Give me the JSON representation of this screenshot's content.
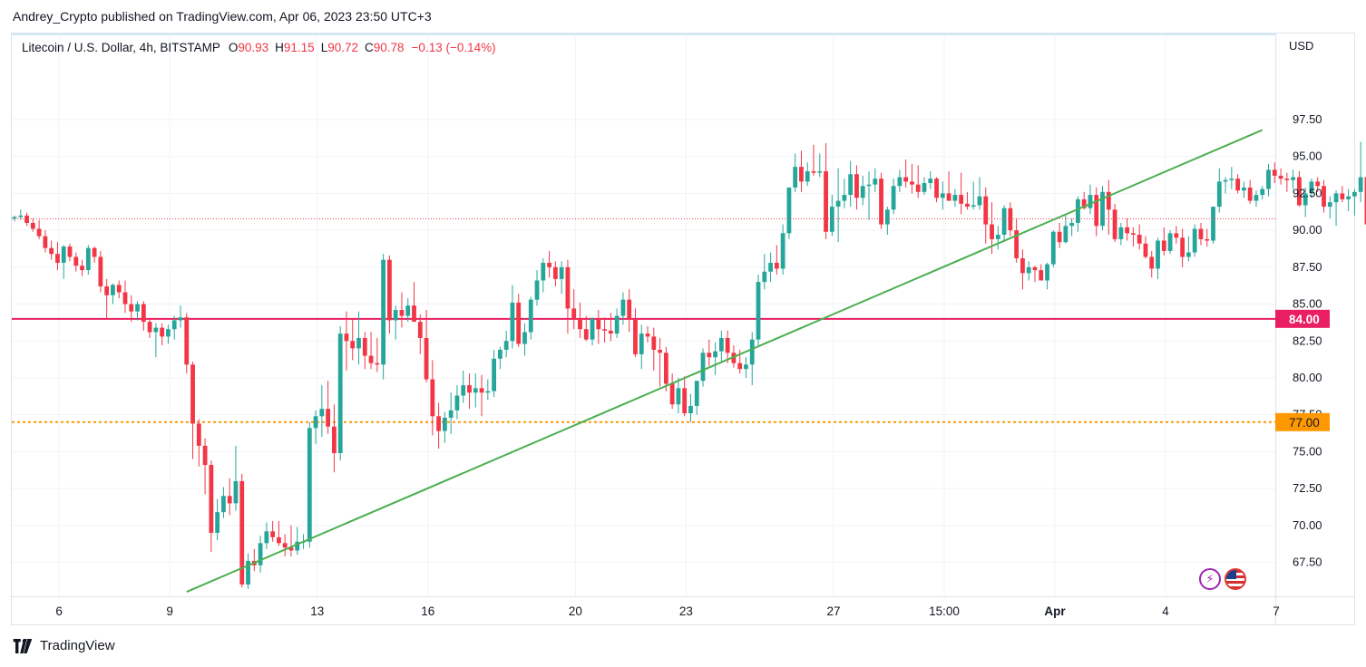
{
  "publisher": "Andrey_Crypto published on TradingView.com, Apr 06, 2023 23:50 UTC+3",
  "legend": {
    "symbol": "Litecoin / U.S. Dollar, 4h, BITSTAMP",
    "o_label": "O",
    "o_value": "90.93",
    "h_label": "H",
    "h_value": "91.15",
    "l_label": "L",
    "l_value": "90.72",
    "c_label": "C",
    "c_value": "90.78",
    "change": "−0.13 (−0.14%)"
  },
  "currency": "USD",
  "brand": "TradingView",
  "colors": {
    "up": "#26a69a",
    "down": "#f23645",
    "trendline": "#4caf50",
    "resistance": "#e91e63",
    "support": "#ff9800",
    "last_price": "#f23645"
  },
  "icons": [
    "bolt-event-icon",
    "us-flag-icon"
  ],
  "chart_data": {
    "type": "candlestick",
    "pair": "LTC/USD",
    "interval": "4h",
    "exchange": "BITSTAMP",
    "ylim": [
      65.5,
      99
    ],
    "y_ticks": [
      67.5,
      70.0,
      72.5,
      75.0,
      77.5,
      80.0,
      82.5,
      85.0,
      87.5,
      90.0,
      92.5,
      95.0,
      97.5
    ],
    "x_tick_labels": [
      "6",
      "9",
      "13",
      "16",
      "20",
      "23",
      "27",
      "15:00",
      "Apr",
      "4",
      "7"
    ],
    "x_tick_index": [
      4,
      22,
      46,
      64,
      88,
      106,
      130,
      148,
      166,
      184,
      202
    ],
    "horizontal_levels": [
      {
        "value": 84.0,
        "label": "84.00",
        "style": "solid"
      },
      {
        "value": 77.0,
        "label": "77.00",
        "style": "dotted"
      }
    ],
    "last_price": 90.78,
    "trendline": {
      "from": {
        "i": 28,
        "y": 65.5
      },
      "to": {
        "i": 203,
        "y": 96.8
      }
    },
    "candles": [
      [
        90.8,
        91.0,
        90.6,
        90.9
      ],
      [
        90.9,
        91.4,
        90.7,
        91.0
      ],
      [
        91.0,
        91.2,
        90.3,
        90.5
      ],
      [
        90.5,
        90.8,
        89.9,
        90.1
      ],
      [
        90.1,
        90.7,
        89.4,
        89.6
      ],
      [
        89.6,
        90.0,
        88.5,
        88.8
      ],
      [
        88.8,
        89.3,
        88.0,
        88.4
      ],
      [
        88.4,
        89.2,
        87.3,
        87.8
      ],
      [
        87.8,
        89.0,
        86.7,
        88.9
      ],
      [
        88.9,
        89.1,
        87.9,
        88.2
      ],
      [
        88.2,
        88.5,
        87.2,
        87.6
      ],
      [
        87.6,
        88.0,
        86.9,
        87.3
      ],
      [
        87.3,
        89.0,
        87.0,
        88.8
      ],
      [
        88.8,
        88.9,
        87.8,
        88.2
      ],
      [
        88.2,
        88.6,
        85.8,
        86.2
      ],
      [
        86.2,
        86.7,
        84.0,
        85.6
      ],
      [
        85.6,
        86.4,
        85.0,
        86.3
      ],
      [
        86.3,
        86.6,
        85.4,
        85.8
      ],
      [
        85.8,
        86.6,
        84.4,
        85.0
      ],
      [
        85.0,
        85.6,
        83.8,
        84.5
      ],
      [
        84.5,
        85.2,
        83.9,
        85.0
      ],
      [
        85.0,
        85.2,
        83.2,
        83.8
      ],
      [
        83.8,
        84.0,
        82.7,
        83.1
      ],
      [
        83.1,
        83.7,
        81.4,
        83.4
      ],
      [
        83.4,
        83.7,
        82.2,
        82.8
      ],
      [
        82.8,
        83.6,
        82.3,
        83.3
      ],
      [
        83.3,
        84.2,
        82.6,
        83.9
      ],
      [
        83.9,
        84.9,
        83.4,
        84.1
      ],
      [
        84.1,
        84.4,
        80.3,
        80.9
      ],
      [
        80.9,
        81.1,
        74.5,
        76.9
      ],
      [
        76.9,
        77.2,
        74.0,
        75.4
      ],
      [
        75.4,
        75.9,
        72.1,
        74.1
      ],
      [
        74.1,
        74.4,
        68.2,
        69.5
      ],
      [
        69.5,
        71.8,
        69.0,
        70.9
      ],
      [
        70.9,
        72.6,
        70.5,
        72.0
      ],
      [
        72.0,
        73.2,
        70.7,
        71.5
      ],
      [
        71.5,
        75.4,
        71.0,
        73.0
      ],
      [
        73.0,
        73.5,
        65.8,
        66.0
      ],
      [
        66.0,
        68.1,
        65.7,
        67.6
      ],
      [
        67.6,
        68.4,
        66.9,
        67.3
      ],
      [
        67.3,
        69.3,
        66.8,
        68.8
      ],
      [
        68.8,
        70.2,
        68.4,
        69.6
      ],
      [
        69.6,
        70.3,
        68.9,
        69.2
      ],
      [
        69.2,
        70.3,
        68.6,
        68.8
      ],
      [
        68.8,
        69.4,
        67.9,
        68.5
      ],
      [
        68.5,
        70.0,
        67.9,
        68.3
      ],
      [
        68.3,
        69.9,
        68.0,
        68.9
      ],
      [
        68.9,
        69.4,
        68.4,
        68.9
      ],
      [
        68.9,
        77.0,
        68.5,
        76.6
      ],
      [
        76.6,
        77.8,
        75.5,
        77.4
      ],
      [
        77.4,
        79.5,
        76.0,
        77.9
      ],
      [
        77.9,
        79.8,
        76.2,
        76.7
      ],
      [
        76.7,
        78.2,
        73.6,
        74.9
      ],
      [
        74.9,
        83.5,
        74.4,
        83.0
      ],
      [
        83.0,
        84.5,
        80.5,
        82.5
      ],
      [
        82.5,
        84.0,
        81.2,
        82.0
      ],
      [
        82.0,
        84.5,
        80.9,
        82.7
      ],
      [
        82.7,
        83.1,
        80.6,
        81.5
      ],
      [
        81.5,
        83.1,
        80.6,
        81.0
      ],
      [
        81.0,
        82.7,
        80.4,
        80.9
      ],
      [
        80.9,
        88.4,
        79.9,
        88.0
      ],
      [
        88.0,
        88.3,
        83.0,
        83.9
      ],
      [
        83.9,
        84.9,
        82.6,
        84.6
      ],
      [
        84.6,
        85.8,
        83.4,
        84.2
      ],
      [
        84.2,
        85.4,
        83.8,
        84.9
      ],
      [
        84.9,
        86.5,
        84.0,
        83.8
      ],
      [
        83.8,
        84.3,
        81.6,
        82.7
      ],
      [
        82.7,
        84.6,
        79.7,
        79.9
      ],
      [
        79.9,
        81.2,
        76.1,
        77.4
      ],
      [
        77.4,
        78.3,
        75.2,
        76.4
      ],
      [
        76.4,
        77.7,
        75.6,
        77.3
      ],
      [
        77.3,
        79.0,
        76.2,
        77.8
      ],
      [
        77.8,
        79.5,
        77.2,
        78.8
      ],
      [
        78.8,
        80.5,
        78.3,
        79.5
      ],
      [
        79.5,
        80.3,
        77.9,
        79.0
      ],
      [
        79.0,
        80.3,
        78.0,
        79.3
      ],
      [
        79.3,
        80.2,
        77.4,
        79.0
      ],
      [
        79.0,
        79.9,
        78.5,
        79.1
      ],
      [
        79.1,
        81.9,
        78.7,
        81.3
      ],
      [
        81.3,
        82.1,
        80.6,
        81.9
      ],
      [
        81.9,
        83.2,
        81.4,
        82.5
      ],
      [
        82.5,
        86.3,
        82.0,
        85.1
      ],
      [
        85.1,
        85.7,
        82.1,
        82.3
      ],
      [
        82.3,
        83.7,
        81.5,
        83.1
      ],
      [
        83.1,
        85.5,
        82.6,
        85.3
      ],
      [
        85.3,
        87.3,
        84.9,
        86.6
      ],
      [
        86.6,
        88.1,
        85.8,
        87.8
      ],
      [
        87.8,
        88.6,
        86.8,
        87.5
      ],
      [
        87.5,
        87.9,
        86.2,
        86.7
      ],
      [
        86.7,
        87.9,
        85.7,
        87.5
      ],
      [
        87.5,
        88.0,
        83.0,
        84.7
      ],
      [
        84.7,
        86.0,
        83.3,
        84.0
      ],
      [
        84.0,
        85.1,
        82.7,
        83.3
      ],
      [
        83.3,
        84.2,
        82.5,
        82.6
      ],
      [
        82.6,
        84.1,
        82.2,
        84.0
      ],
      [
        84.0,
        84.6,
        82.3,
        83.3
      ],
      [
        83.3,
        84.1,
        82.4,
        83.2
      ],
      [
        83.2,
        84.4,
        82.5,
        83.0
      ],
      [
        83.0,
        84.7,
        82.7,
        84.2
      ],
      [
        84.2,
        85.8,
        83.6,
        85.3
      ],
      [
        85.3,
        86.0,
        83.1,
        84.0
      ],
      [
        84.0,
        84.7,
        81.4,
        81.6
      ],
      [
        81.6,
        83.6,
        80.6,
        83.0
      ],
      [
        83.0,
        83.5,
        82.4,
        82.8
      ],
      [
        82.8,
        83.4,
        80.5,
        81.9
      ],
      [
        81.9,
        82.7,
        79.4,
        81.7
      ],
      [
        81.7,
        82.1,
        79.1,
        79.6
      ],
      [
        79.6,
        80.3,
        77.9,
        78.2
      ],
      [
        78.2,
        80.0,
        77.6,
        79.3
      ],
      [
        79.3,
        80.1,
        77.4,
        77.6
      ],
      [
        77.6,
        78.9,
        77.0,
        78.1
      ],
      [
        78.1,
        79.7,
        77.5,
        79.8
      ],
      [
        79.8,
        82.0,
        79.4,
        81.7
      ],
      [
        81.7,
        82.6,
        80.8,
        81.4
      ],
      [
        81.4,
        82.4,
        80.2,
        81.8
      ],
      [
        81.8,
        83.2,
        81.0,
        82.7
      ],
      [
        82.7,
        83.2,
        81.0,
        81.7
      ],
      [
        81.7,
        82.2,
        80.7,
        81.0
      ],
      [
        81.0,
        81.9,
        80.3,
        80.6
      ],
      [
        80.6,
        81.4,
        80.0,
        80.9
      ],
      [
        80.9,
        83.1,
        79.5,
        82.6
      ],
      [
        82.6,
        87.0,
        82.1,
        86.5
      ],
      [
        86.5,
        88.4,
        86.0,
        87.2
      ],
      [
        87.2,
        88.5,
        86.5,
        87.8
      ],
      [
        87.8,
        89.0,
        87.0,
        87.4
      ],
      [
        87.4,
        90.4,
        87.0,
        89.8
      ],
      [
        89.8,
        92.9,
        89.4,
        92.9
      ],
      [
        92.9,
        95.2,
        92.6,
        94.3
      ],
      [
        94.3,
        95.4,
        92.6,
        93.3
      ],
      [
        93.3,
        94.6,
        93.0,
        94.0
      ],
      [
        94.0,
        95.8,
        93.7,
        93.9
      ],
      [
        93.9,
        95.2,
        93.6,
        94.0
      ],
      [
        94.0,
        95.9,
        89.4,
        89.9
      ],
      [
        89.9,
        92.4,
        89.6,
        91.6
      ],
      [
        91.6,
        94.2,
        89.2,
        92.0
      ],
      [
        92.0,
        93.5,
        91.5,
        92.4
      ],
      [
        92.4,
        94.7,
        91.6,
        93.8
      ],
      [
        93.8,
        94.4,
        91.4,
        92.2
      ],
      [
        92.2,
        93.7,
        91.7,
        93.0
      ],
      [
        93.0,
        94.0,
        90.7,
        93.1
      ],
      [
        93.1,
        94.2,
        92.6,
        93.5
      ],
      [
        93.5,
        93.9,
        90.1,
        90.4
      ],
      [
        90.4,
        91.6,
        89.7,
        91.4
      ],
      [
        91.4,
        93.5,
        91.1,
        93.0
      ],
      [
        93.0,
        94.1,
        92.6,
        93.6
      ],
      [
        93.6,
        94.8,
        92.9,
        93.3
      ],
      [
        93.3,
        94.5,
        92.5,
        93.1
      ],
      [
        93.1,
        94.4,
        92.2,
        92.6
      ],
      [
        92.6,
        93.6,
        92.4,
        93.2
      ],
      [
        93.2,
        94.0,
        92.8,
        93.5
      ],
      [
        93.5,
        93.6,
        91.9,
        92.2
      ],
      [
        92.2,
        93.3,
        91.4,
        92.5
      ],
      [
        92.5,
        94.0,
        92.2,
        92.0
      ],
      [
        92.0,
        92.8,
        91.6,
        92.4
      ],
      [
        92.4,
        93.9,
        91.1,
        91.8
      ],
      [
        91.8,
        92.6,
        91.4,
        91.6
      ],
      [
        91.6,
        93.3,
        91.4,
        91.7
      ],
      [
        91.7,
        93.6,
        91.4,
        92.3
      ],
      [
        92.3,
        92.9,
        89.1,
        90.4
      ],
      [
        90.4,
        91.9,
        88.4,
        89.4
      ],
      [
        89.4,
        90.3,
        88.7,
        89.7
      ],
      [
        89.7,
        91.7,
        89.2,
        91.5
      ],
      [
        91.5,
        91.9,
        89.6,
        90.0
      ],
      [
        90.0,
        90.8,
        87.8,
        88.1
      ],
      [
        88.1,
        88.7,
        86.0,
        87.1
      ],
      [
        87.1,
        87.9,
        86.6,
        87.5
      ],
      [
        87.5,
        87.6,
        86.5,
        87.3
      ],
      [
        87.3,
        87.7,
        86.7,
        86.6
      ],
      [
        86.6,
        87.8,
        86.0,
        87.7
      ],
      [
        87.7,
        90.0,
        87.5,
        89.9
      ],
      [
        89.9,
        90.5,
        88.8,
        89.2
      ],
      [
        89.2,
        91.0,
        89.1,
        90.3
      ],
      [
        90.3,
        90.8,
        89.6,
        90.5
      ],
      [
        90.5,
        92.3,
        89.9,
        92.1
      ],
      [
        92.1,
        92.6,
        91.4,
        91.5
      ],
      [
        91.5,
        93.1,
        91.1,
        92.4
      ],
      [
        92.4,
        92.9,
        89.6,
        90.3
      ],
      [
        90.3,
        93.0,
        90.0,
        92.6
      ],
      [
        92.6,
        93.4,
        89.7,
        91.4
      ],
      [
        91.4,
        91.8,
        89.2,
        89.4
      ],
      [
        89.4,
        90.5,
        89.0,
        90.2
      ],
      [
        90.2,
        90.8,
        89.3,
        89.8
      ],
      [
        89.8,
        90.2,
        88.9,
        89.7
      ],
      [
        89.7,
        90.4,
        88.7,
        89.1
      ],
      [
        89.1,
        89.6,
        88.1,
        88.2
      ],
      [
        88.2,
        88.6,
        86.8,
        87.4
      ],
      [
        87.4,
        89.5,
        86.7,
        89.3
      ],
      [
        89.3,
        90.2,
        88.3,
        88.6
      ],
      [
        88.6,
        90.0,
        88.4,
        89.8
      ],
      [
        89.8,
        90.3,
        89.1,
        89.5
      ],
      [
        89.5,
        90.1,
        87.5,
        88.2
      ],
      [
        88.2,
        89.6,
        87.9,
        88.5
      ],
      [
        88.5,
        90.4,
        88.2,
        90.1
      ],
      [
        90.1,
        90.5,
        89.0,
        89.4
      ],
      [
        89.4,
        90.1,
        88.9,
        89.3
      ],
      [
        89.3,
        91.6,
        89.1,
        91.6
      ],
      [
        91.6,
        94.2,
        91.2,
        93.3
      ],
      [
        93.3,
        93.6,
        92.5,
        93.4
      ],
      [
        93.4,
        94.3,
        92.8,
        93.5
      ],
      [
        93.5,
        93.8,
        92.5,
        92.7
      ],
      [
        92.7,
        93.3,
        92.2,
        92.9
      ],
      [
        92.9,
        93.4,
        91.8,
        92.0
      ],
      [
        92.0,
        92.7,
        91.6,
        92.4
      ],
      [
        92.4,
        93.0,
        92.1,
        92.8
      ],
      [
        92.8,
        94.5,
        92.3,
        94.1
      ],
      [
        94.1,
        94.6,
        93.2,
        93.7
      ],
      [
        93.7,
        94.2,
        93.1,
        93.5
      ],
      [
        93.5,
        93.9,
        92.6,
        93.4
      ],
      [
        93.4,
        94.1,
        92.8,
        93.6
      ],
      [
        93.6,
        94.0,
        91.6,
        91.7
      ],
      [
        91.7,
        92.9,
        90.9,
        92.5
      ],
      [
        92.5,
        93.5,
        92.2,
        93.3
      ],
      [
        93.3,
        93.6,
        92.6,
        93.0
      ],
      [
        93.0,
        93.4,
        91.2,
        91.6
      ],
      [
        91.6,
        92.3,
        90.8,
        91.9
      ],
      [
        91.9,
        92.7,
        90.3,
        92.5
      ],
      [
        92.5,
        93.0,
        91.9,
        92.1
      ],
      [
        92.1,
        92.8,
        91.3,
        92.3
      ],
      [
        92.3,
        92.8,
        91.0,
        92.6
      ],
      [
        92.6,
        96.0,
        91.9,
        93.6
      ],
      [
        93.6,
        94.2,
        89.8,
        90.4
      ],
      [
        90.4,
        93.5,
        90.1,
        92.8
      ],
      [
        92.8,
        94.0,
        92.3,
        93.5
      ],
      [
        93.5,
        94.3,
        92.2,
        92.5
      ],
      [
        92.5,
        93.0,
        91.8,
        92.2
      ],
      [
        92.2,
        93.1,
        91.6,
        92.5
      ],
      [
        92.5,
        94.1,
        91.8,
        93.4
      ],
      [
        93.4,
        94.2,
        92.8,
        93.1
      ],
      [
        93.1,
        93.9,
        92.0,
        92.8
      ],
      [
        92.8,
        93.5,
        92.1,
        92.5
      ],
      [
        92.5,
        93.3,
        92.0,
        92.9
      ],
      [
        92.9,
        94.1,
        92.1,
        93.9
      ],
      [
        93.9,
        94.2,
        92.9,
        93.1
      ],
      [
        93.1,
        95.1,
        92.8,
        95.0
      ],
      [
        95.0,
        95.1,
        94.5,
        94.8
      ],
      [
        94.8,
        95.2,
        94.0,
        94.8
      ],
      [
        94.8,
        94.9,
        92.3,
        92.4
      ],
      [
        92.4,
        93.2,
        91.5,
        92.3
      ],
      [
        92.3,
        92.6,
        91.1,
        92.4
      ],
      [
        92.4,
        92.6,
        91.7,
        92.0
      ],
      [
        92.0,
        92.8,
        91.7,
        92.0
      ],
      [
        92.0,
        92.2,
        90.6,
        91.0
      ],
      [
        91.0,
        91.4,
        89.9,
        90.8
      ],
      [
        90.8,
        91.5,
        90.6,
        91.1
      ],
      [
        91.1,
        91.3,
        90.6,
        90.9
      ],
      [
        90.9,
        91.4,
        90.7,
        91.2
      ],
      [
        91.2,
        91.3,
        90.6,
        90.9
      ],
      [
        90.93,
        91.15,
        90.72,
        90.78
      ]
    ]
  }
}
